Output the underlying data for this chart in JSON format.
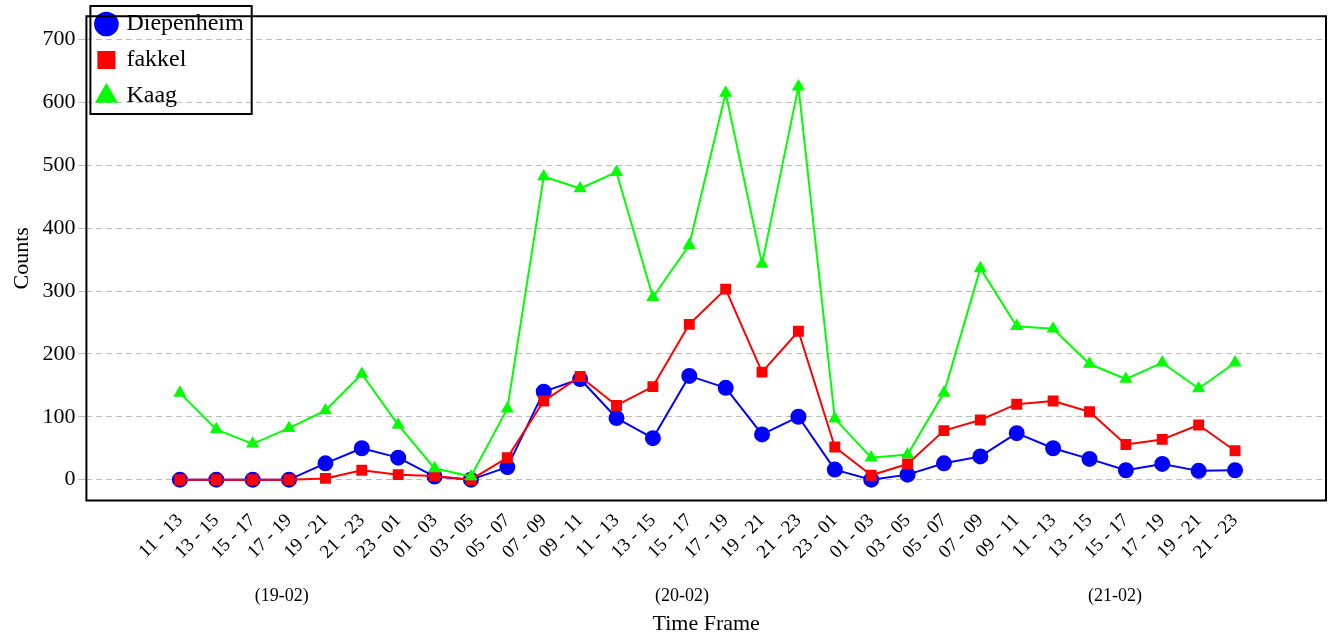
{
  "chart_data": {
    "type": "line",
    "xlabel": "Time Frame",
    "ylabel": "Counts",
    "categories": [
      "11 - 13",
      "13 - 15",
      "15 - 17",
      "17 - 19",
      "19 - 21",
      "21 - 23",
      "23 - 01",
      "01 - 03",
      "03 - 05",
      "05 - 07",
      "07 - 09",
      "09 - 11",
      "11 - 13",
      "13 - 15",
      "15 - 17",
      "17 - 19",
      "19 - 21",
      "21 - 23",
      "23 - 01",
      "01 - 03",
      "03 - 05",
      "05 - 07",
      "07 - 09",
      "09 - 11",
      "11 - 13",
      "13 - 15",
      "15 - 17",
      "17 - 19",
      "19 - 21",
      "21 - 23"
    ],
    "series": [
      {
        "name": "Diepenheim",
        "color": "#0000ff",
        "marker": "circle",
        "values": [
          0,
          0,
          0,
          0,
          26,
          50,
          35,
          5,
          0,
          20,
          140,
          160,
          98,
          66,
          165,
          146,
          72,
          100,
          16,
          0,
          8,
          26,
          37,
          74,
          50,
          33,
          15,
          25,
          14,
          15
        ]
      },
      {
        "name": "fakkel",
        "color": "#ff0000",
        "marker": "square",
        "values": [
          0,
          0,
          0,
          0,
          2,
          15,
          8,
          6,
          0,
          35,
          125,
          164,
          118,
          148,
          247,
          303,
          171,
          236,
          52,
          7,
          25,
          78,
          95,
          120,
          125,
          108,
          56,
          64,
          87,
          46
        ]
      },
      {
        "name": "Kaag",
        "color": "#00ff00",
        "marker": "triangle",
        "values": [
          138,
          80,
          57,
          82,
          110,
          168,
          87,
          18,
          5,
          113,
          482,
          463,
          489,
          290,
          373,
          615,
          343,
          625,
          97,
          35,
          40,
          138,
          336,
          244,
          240,
          184,
          160,
          186,
          145,
          186
        ]
      }
    ],
    "ylim": [
      -33,
      737
    ],
    "yticks": [
      0,
      100,
      200,
      300,
      400,
      500,
      600,
      700
    ],
    "grid": "y",
    "legend": "top left",
    "annotations": [
      "(19-02)",
      "(20-02)",
      "(21-02)"
    ]
  }
}
